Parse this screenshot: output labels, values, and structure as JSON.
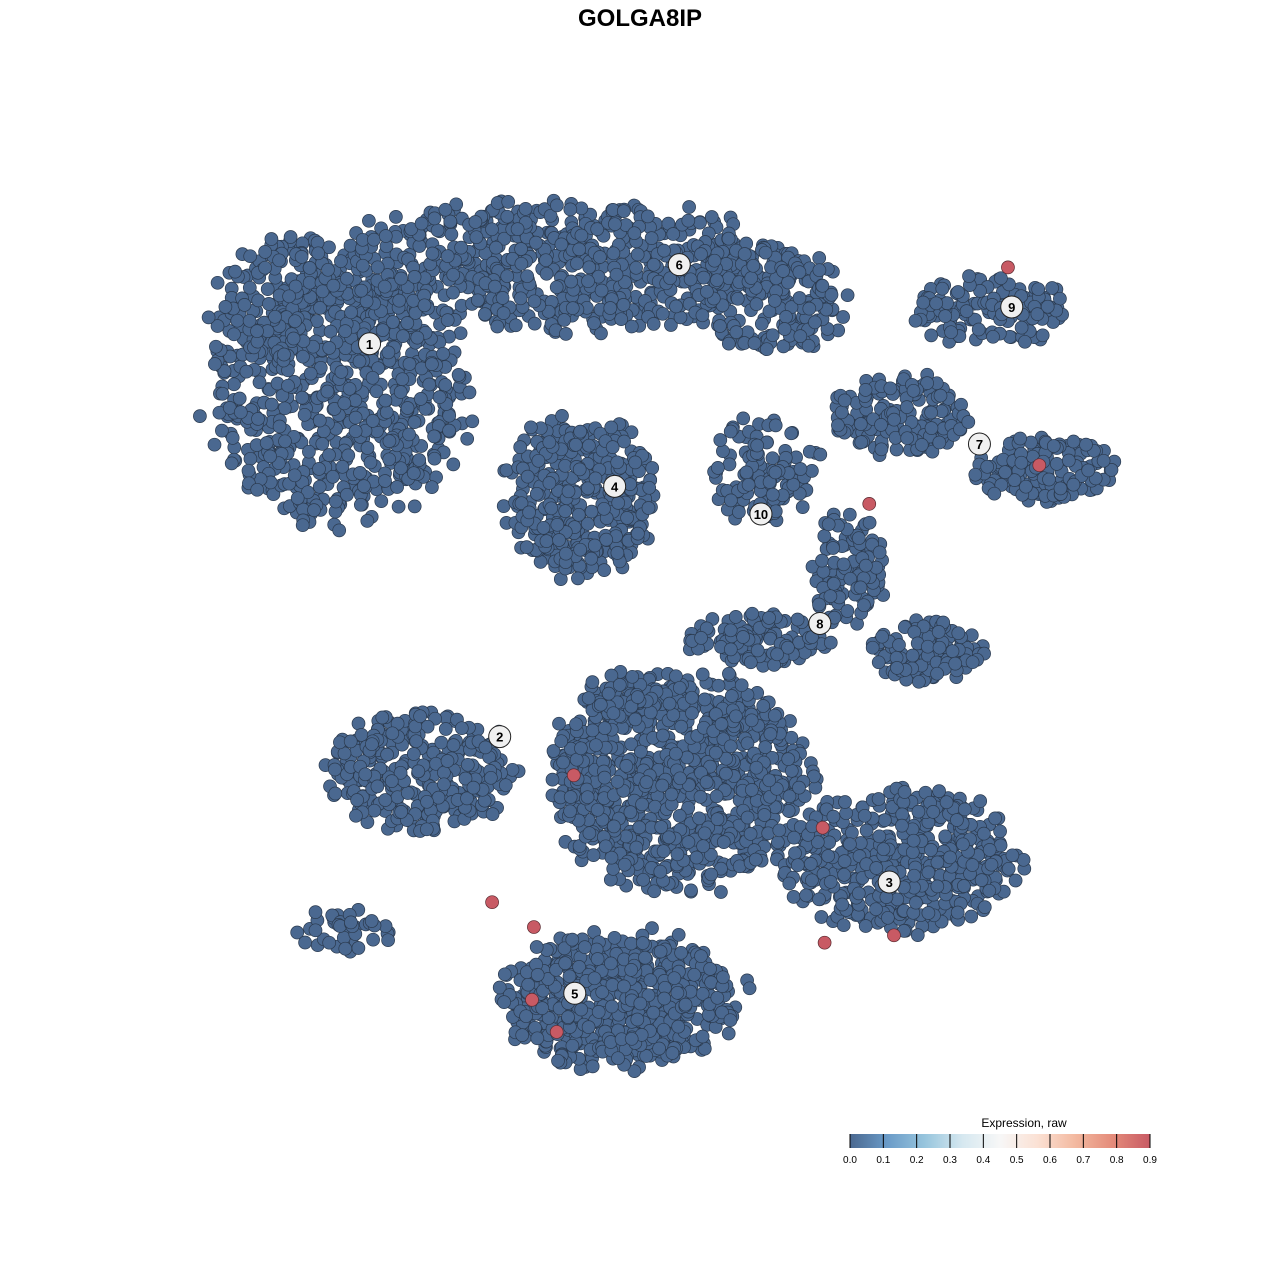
{
  "chart_data": {
    "type": "scatter",
    "title": "GOLGA8IP",
    "xlabel": "",
    "ylabel": "",
    "xlim": [
      -50,
      50
    ],
    "ylim": [
      -50,
      50
    ],
    "grid": false,
    "axes_visible": false,
    "default_expression": 0.0,
    "clusters": [
      {
        "label": "1",
        "x": -31.1,
        "y": 32.2
      },
      {
        "label": "2",
        "x": -17.4,
        "y": -10.5
      },
      {
        "label": "3",
        "x": 23.6,
        "y": -26.3
      },
      {
        "label": "4",
        "x": -5.3,
        "y": 16.7
      },
      {
        "label": "5",
        "x": -9.5,
        "y": -38.4
      },
      {
        "label": "6",
        "x": 1.5,
        "y": 40.8
      },
      {
        "label": "7",
        "x": 33.1,
        "y": 21.3
      },
      {
        "label": "8",
        "x": 16.3,
        "y": 1.8
      },
      {
        "label": "9",
        "x": 36.5,
        "y": 36.2
      },
      {
        "label": "10",
        "x": 10.1,
        "y": 13.7
      }
    ],
    "expressing_points": [
      {
        "x": 36.1,
        "y": 40.5,
        "value": 0.9
      },
      {
        "x": 39.4,
        "y": 19.0,
        "value": 0.9
      },
      {
        "x": 21.5,
        "y": 14.8,
        "value": 0.9
      },
      {
        "x": -9.6,
        "y": -14.7,
        "value": 0.9
      },
      {
        "x": 16.6,
        "y": -20.4,
        "value": 0.9
      },
      {
        "x": -18.2,
        "y": -28.5,
        "value": 0.9
      },
      {
        "x": -13.8,
        "y": -31.2,
        "value": 0.9
      },
      {
        "x": 16.8,
        "y": -32.9,
        "value": 0.9
      },
      {
        "x": 24.1,
        "y": -32.1,
        "value": 0.9
      },
      {
        "x": -14.0,
        "y": -39.1,
        "value": 0.9
      },
      {
        "x": -11.4,
        "y": -42.6,
        "value": 0.9
      }
    ],
    "legend": {
      "title": "Expression, raw",
      "placement": "bottom-right",
      "ticks": [
        "0.0",
        "0.1",
        "0.2",
        "0.3",
        "0.4",
        "0.5",
        "0.6",
        "0.7",
        "0.8",
        "0.9"
      ],
      "colors": [
        "#4a6890",
        "#6a9bc8",
        "#97c5dd",
        "#d6e8f0",
        "#f7f7f7",
        "#fbe1d4",
        "#f3b9a0",
        "#e48b7a",
        "#c85a64"
      ]
    },
    "low_color": "#4a6890",
    "high_color": "#c85a64"
  }
}
